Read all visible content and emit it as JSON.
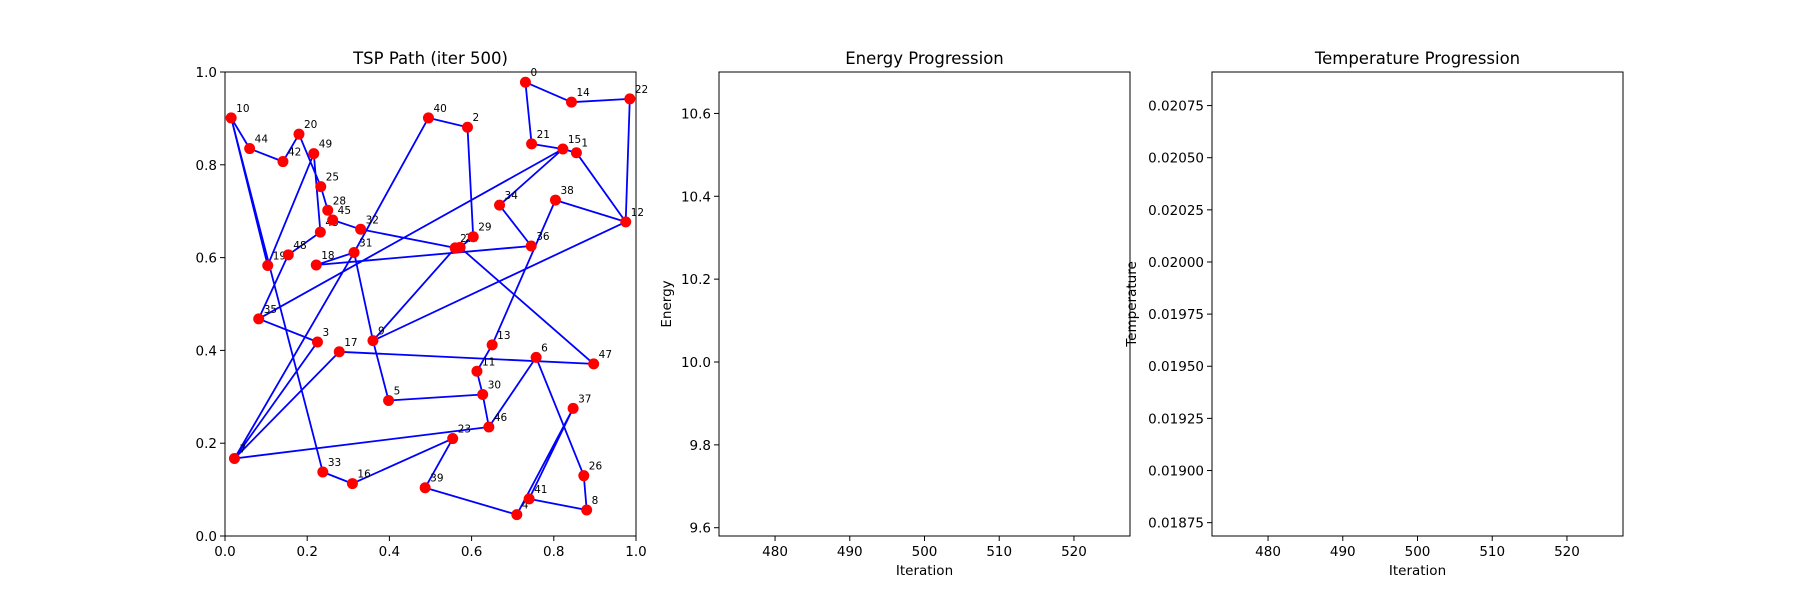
{
  "chart_data": [
    {
      "type": "scatter",
      "title": "TSP Path (iter 500)",
      "xlabel": "",
      "ylabel": "",
      "xlim": [
        0.0,
        1.0
      ],
      "ylim": [
        0.0,
        1.0
      ],
      "xticks": [
        "0.0",
        "0.2",
        "0.4",
        "0.6",
        "0.8",
        "1.0"
      ],
      "yticks": [
        "0.0",
        "0.2",
        "0.4",
        "0.6",
        "0.8",
        "1.0"
      ],
      "point_color": "#ff0000",
      "path_color": "#0000ff",
      "cities": [
        {
          "id": "0",
          "x": 0.731,
          "y": 0.978
        },
        {
          "id": "1",
          "x": 0.855,
          "y": 0.826
        },
        {
          "id": "2",
          "x": 0.59,
          "y": 0.881
        },
        {
          "id": "3",
          "x": 0.225,
          "y": 0.418
        },
        {
          "id": "4",
          "x": 0.71,
          "y": 0.046
        },
        {
          "id": "5",
          "x": 0.398,
          "y": 0.292
        },
        {
          "id": "6",
          "x": 0.757,
          "y": 0.385
        },
        {
          "id": "7",
          "x": 0.023,
          "y": 0.167
        },
        {
          "id": "8",
          "x": 0.88,
          "y": 0.056
        },
        {
          "id": "9",
          "x": 0.36,
          "y": 0.421
        },
        {
          "id": "10",
          "x": 0.015,
          "y": 0.901
        },
        {
          "id": "11",
          "x": 0.613,
          "y": 0.355
        },
        {
          "id": "12",
          "x": 0.975,
          "y": 0.677
        },
        {
          "id": "13",
          "x": 0.65,
          "y": 0.412
        },
        {
          "id": "14",
          "x": 0.843,
          "y": 0.935
        },
        {
          "id": "15",
          "x": 0.822,
          "y": 0.834
        },
        {
          "id": "16",
          "x": 0.31,
          "y": 0.113
        },
        {
          "id": "17",
          "x": 0.278,
          "y": 0.397
        },
        {
          "id": "18",
          "x": 0.222,
          "y": 0.584
        },
        {
          "id": "19",
          "x": 0.104,
          "y": 0.583
        },
        {
          "id": "20",
          "x": 0.18,
          "y": 0.866
        },
        {
          "id": "21",
          "x": 0.746,
          "y": 0.845
        },
        {
          "id": "22",
          "x": 0.985,
          "y": 0.942
        },
        {
          "id": "23",
          "x": 0.554,
          "y": 0.21
        },
        {
          "id": "24",
          "x": 0.572,
          "y": 0.622
        },
        {
          "id": "25",
          "x": 0.233,
          "y": 0.753
        },
        {
          "id": "26",
          "x": 0.873,
          "y": 0.13
        },
        {
          "id": "27",
          "x": 0.56,
          "y": 0.621
        },
        {
          "id": "28",
          "x": 0.25,
          "y": 0.702
        },
        {
          "id": "29",
          "x": 0.604,
          "y": 0.645
        },
        {
          "id": "30",
          "x": 0.627,
          "y": 0.305
        },
        {
          "id": "31",
          "x": 0.314,
          "y": 0.611
        },
        {
          "id": "32",
          "x": 0.33,
          "y": 0.661
        },
        {
          "id": "33",
          "x": 0.238,
          "y": 0.138
        },
        {
          "id": "34",
          "x": 0.668,
          "y": 0.713
        },
        {
          "id": "35",
          "x": 0.082,
          "y": 0.468
        },
        {
          "id": "36",
          "x": 0.745,
          "y": 0.625
        },
        {
          "id": "37",
          "x": 0.847,
          "y": 0.275
        },
        {
          "id": "38",
          "x": 0.804,
          "y": 0.724
        },
        {
          "id": "39",
          "x": 0.487,
          "y": 0.104
        },
        {
          "id": "40",
          "x": 0.495,
          "y": 0.901
        },
        {
          "id": "41",
          "x": 0.74,
          "y": 0.08
        },
        {
          "id": "42",
          "x": 0.141,
          "y": 0.807
        },
        {
          "id": "43",
          "x": 0.232,
          "y": 0.655
        },
        {
          "id": "44",
          "x": 0.06,
          "y": 0.835
        },
        {
          "id": "45",
          "x": 0.262,
          "y": 0.681
        },
        {
          "id": "46",
          "x": 0.642,
          "y": 0.235
        },
        {
          "id": "47",
          "x": 0.897,
          "y": 0.371
        },
        {
          "id": "48",
          "x": 0.154,
          "y": 0.606
        },
        {
          "id": "49",
          "x": 0.216,
          "y": 0.824
        }
      ],
      "tour": [
        "10",
        "44",
        "42",
        "20",
        "25",
        "28",
        "45",
        "32",
        "27",
        "24",
        "47",
        "17",
        "7",
        "31",
        "40",
        "2",
        "29",
        "24",
        "27",
        "9",
        "12",
        "1",
        "15",
        "21",
        "0",
        "14",
        "22",
        "12",
        "38",
        "13",
        "11",
        "30",
        "46",
        "7",
        "3",
        "35",
        "48",
        "43",
        "49",
        "19",
        "10",
        "33",
        "16",
        "23",
        "39",
        "4",
        "37",
        "41",
        "8",
        "26",
        "6",
        "46",
        "30",
        "5",
        "9",
        "31",
        "18",
        "36",
        "34",
        "15",
        "35"
      ]
    },
    {
      "type": "line",
      "title": "Energy Progression",
      "xlabel": "Iteration",
      "ylabel": "Energy",
      "xlim": [
        472.5,
        527.5
      ],
      "ylim": [
        9.58,
        10.7
      ],
      "xticks": [
        "480",
        "490",
        "500",
        "510",
        "520"
      ],
      "yticks": [
        "9.6",
        "9.8",
        "10.0",
        "10.2",
        "10.4",
        "10.6"
      ],
      "series": []
    },
    {
      "type": "line",
      "title": "Temperature Progression",
      "xlabel": "Iteration",
      "ylabel": "Temperature",
      "xlim": [
        472.5,
        527.5
      ],
      "ylim": [
        0.018686,
        0.020911
      ],
      "xticks": [
        "480",
        "490",
        "500",
        "510",
        "520"
      ],
      "yticks": [
        "0.01875",
        "0.01900",
        "0.01925",
        "0.01950",
        "0.01975",
        "0.02000",
        "0.02025",
        "0.02050",
        "0.02075"
      ],
      "series": []
    }
  ]
}
